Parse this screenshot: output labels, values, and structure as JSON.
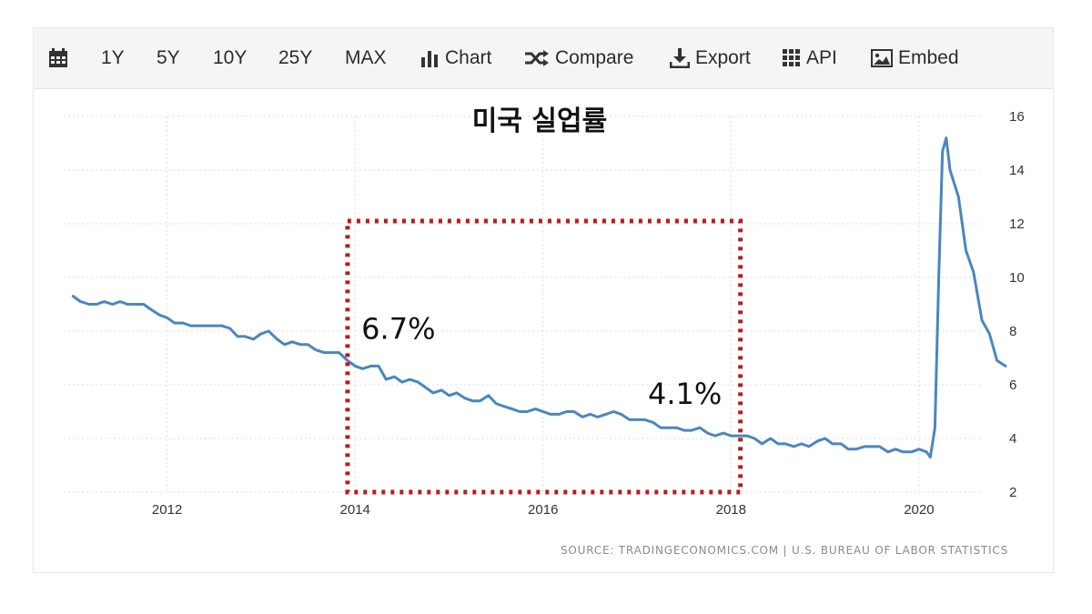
{
  "toolbar": {
    "items": [
      {
        "label": "",
        "icon": "calendar-icon"
      },
      {
        "label": "1Y"
      },
      {
        "label": "5Y"
      },
      {
        "label": "10Y"
      },
      {
        "label": "25Y"
      },
      {
        "label": "MAX"
      },
      {
        "label": "Chart",
        "icon": "bar-chart-icon"
      },
      {
        "label": "Compare",
        "icon": "shuffle-icon"
      },
      {
        "label": "Export",
        "icon": "download-icon"
      },
      {
        "label": "API",
        "icon": "grid-icon"
      },
      {
        "label": "Embed",
        "icon": "image-icon"
      }
    ]
  },
  "source": "SOURCE: TRADINGECONOMICS.COM  |  U.S. BUREAU OF LABOR STATISTICS",
  "colors": {
    "line": "#4a86c0",
    "highlight_box": "#b81c1c",
    "grid": "#dddddd"
  },
  "chart_data": {
    "type": "line",
    "title": "미국 실업률",
    "xlabel": "",
    "ylabel": "",
    "x_ticks": [
      2012,
      2014,
      2016,
      2018,
      2020
    ],
    "y_ticks": [
      2,
      4,
      6,
      8,
      10,
      12,
      14,
      16
    ],
    "xlim": [
      2010.9,
      2020.95
    ],
    "ylim": [
      2,
      16
    ],
    "y_axis_position": "right",
    "grid": true,
    "series": [
      {
        "name": "",
        "points": [
          [
            2011.0,
            9.3
          ],
          [
            2011.08,
            9.1
          ],
          [
            2011.17,
            9.0
          ],
          [
            2011.25,
            9.0
          ],
          [
            2011.33,
            9.1
          ],
          [
            2011.42,
            9.0
          ],
          [
            2011.5,
            9.1
          ],
          [
            2011.58,
            9.0
          ],
          [
            2011.67,
            9.0
          ],
          [
            2011.75,
            9.0
          ],
          [
            2011.83,
            8.8
          ],
          [
            2011.92,
            8.6
          ],
          [
            2012.0,
            8.5
          ],
          [
            2012.08,
            8.3
          ],
          [
            2012.17,
            8.3
          ],
          [
            2012.25,
            8.2
          ],
          [
            2012.33,
            8.2
          ],
          [
            2012.42,
            8.2
          ],
          [
            2012.5,
            8.2
          ],
          [
            2012.58,
            8.2
          ],
          [
            2012.67,
            8.1
          ],
          [
            2012.75,
            7.8
          ],
          [
            2012.83,
            7.8
          ],
          [
            2012.92,
            7.7
          ],
          [
            2013.0,
            7.9
          ],
          [
            2013.08,
            8.0
          ],
          [
            2013.17,
            7.7
          ],
          [
            2013.25,
            7.5
          ],
          [
            2013.33,
            7.6
          ],
          [
            2013.42,
            7.5
          ],
          [
            2013.5,
            7.5
          ],
          [
            2013.58,
            7.3
          ],
          [
            2013.67,
            7.2
          ],
          [
            2013.75,
            7.2
          ],
          [
            2013.83,
            7.2
          ],
          [
            2013.92,
            6.9
          ],
          [
            2014.0,
            6.7
          ],
          [
            2014.08,
            6.6
          ],
          [
            2014.17,
            6.7
          ],
          [
            2014.25,
            6.7
          ],
          [
            2014.33,
            6.2
          ],
          [
            2014.42,
            6.3
          ],
          [
            2014.5,
            6.1
          ],
          [
            2014.58,
            6.2
          ],
          [
            2014.67,
            6.1
          ],
          [
            2014.75,
            5.9
          ],
          [
            2014.83,
            5.7
          ],
          [
            2014.92,
            5.8
          ],
          [
            2015.0,
            5.6
          ],
          [
            2015.08,
            5.7
          ],
          [
            2015.17,
            5.5
          ],
          [
            2015.25,
            5.4
          ],
          [
            2015.33,
            5.4
          ],
          [
            2015.42,
            5.6
          ],
          [
            2015.5,
            5.3
          ],
          [
            2015.58,
            5.2
          ],
          [
            2015.67,
            5.1
          ],
          [
            2015.75,
            5.0
          ],
          [
            2015.83,
            5.0
          ],
          [
            2015.92,
            5.1
          ],
          [
            2016.0,
            5.0
          ],
          [
            2016.08,
            4.9
          ],
          [
            2016.17,
            4.9
          ],
          [
            2016.25,
            5.0
          ],
          [
            2016.33,
            5.0
          ],
          [
            2016.42,
            4.8
          ],
          [
            2016.5,
            4.9
          ],
          [
            2016.58,
            4.8
          ],
          [
            2016.67,
            4.9
          ],
          [
            2016.75,
            5.0
          ],
          [
            2016.83,
            4.9
          ],
          [
            2016.92,
            4.7
          ],
          [
            2017.0,
            4.7
          ],
          [
            2017.08,
            4.7
          ],
          [
            2017.17,
            4.6
          ],
          [
            2017.25,
            4.4
          ],
          [
            2017.33,
            4.4
          ],
          [
            2017.42,
            4.4
          ],
          [
            2017.5,
            4.3
          ],
          [
            2017.58,
            4.3
          ],
          [
            2017.67,
            4.4
          ],
          [
            2017.75,
            4.2
          ],
          [
            2017.83,
            4.1
          ],
          [
            2017.92,
            4.2
          ],
          [
            2018.0,
            4.1
          ],
          [
            2018.08,
            4.1
          ],
          [
            2018.17,
            4.1
          ],
          [
            2018.25,
            4.0
          ],
          [
            2018.33,
            3.8
          ],
          [
            2018.42,
            4.0
          ],
          [
            2018.5,
            3.8
          ],
          [
            2018.58,
            3.8
          ],
          [
            2018.67,
            3.7
          ],
          [
            2018.75,
            3.8
          ],
          [
            2018.83,
            3.7
          ],
          [
            2018.92,
            3.9
          ],
          [
            2019.0,
            4.0
          ],
          [
            2019.08,
            3.8
          ],
          [
            2019.17,
            3.8
          ],
          [
            2019.25,
            3.6
          ],
          [
            2019.33,
            3.6
          ],
          [
            2019.42,
            3.7
          ],
          [
            2019.5,
            3.7
          ],
          [
            2019.58,
            3.7
          ],
          [
            2019.67,
            3.5
          ],
          [
            2019.75,
            3.6
          ],
          [
            2019.83,
            3.5
          ],
          [
            2019.92,
            3.5
          ],
          [
            2020.0,
            3.6
          ],
          [
            2020.08,
            3.5
          ],
          [
            2020.12,
            3.3
          ],
          [
            2020.17,
            4.4
          ],
          [
            2020.21,
            10.0
          ],
          [
            2020.25,
            14.7
          ],
          [
            2020.29,
            15.2
          ],
          [
            2020.33,
            14.0
          ],
          [
            2020.42,
            13.0
          ],
          [
            2020.5,
            11.0
          ],
          [
            2020.58,
            10.2
          ],
          [
            2020.67,
            8.4
          ],
          [
            2020.75,
            7.9
          ],
          [
            2020.83,
            6.9
          ],
          [
            2020.92,
            6.7
          ]
        ]
      }
    ],
    "annotations": [
      {
        "text": "6.7%",
        "x": 2014.0,
        "y": 6.7
      },
      {
        "text": "4.1%",
        "x": 2018.0,
        "y": 4.1
      }
    ],
    "highlight_range": {
      "x": [
        2013.92,
        2018.1
      ],
      "y": [
        2,
        12.1
      ]
    }
  }
}
